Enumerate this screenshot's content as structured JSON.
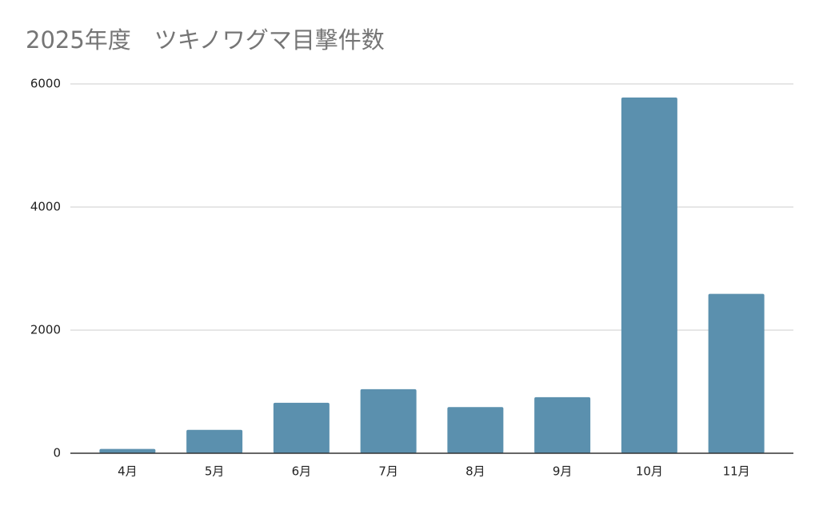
{
  "chart_data": {
    "type": "bar",
    "title": "2025年度　ツキノワグマ目撃件数",
    "categories": [
      "4月",
      "5月",
      "6月",
      "7月",
      "8月",
      "9月",
      "10月",
      "11月"
    ],
    "values": [
      70,
      380,
      820,
      1040,
      750,
      910,
      5780,
      2590
    ],
    "color": "#5b90ae",
    "ylim": [
      0,
      6000
    ],
    "yticks": [
      0,
      2000,
      4000,
      6000
    ],
    "grid": true
  }
}
